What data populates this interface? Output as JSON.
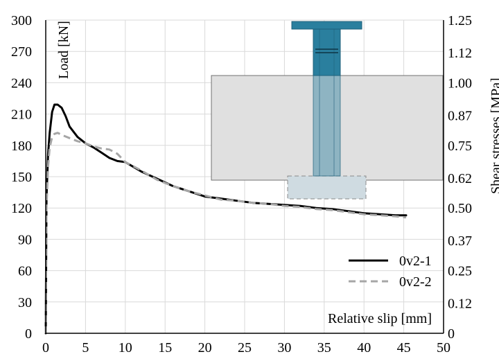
{
  "chart_data": {
    "type": "line",
    "title": "",
    "xlabel": "Relative slip [mm]",
    "ylabel": "Load [kN]",
    "y2label": "Shear stresses [MPa]",
    "xlim": [
      0,
      50
    ],
    "ylim": [
      0,
      300
    ],
    "y2lim": [
      0,
      1.25
    ],
    "x_ticks": [
      "0",
      "5",
      "10",
      "15",
      "20",
      "25",
      "30",
      "35",
      "40",
      "45",
      "50"
    ],
    "y_ticks": [
      "0",
      "30",
      "60",
      "90",
      "120",
      "150",
      "180",
      "210",
      "240",
      "270",
      "300"
    ],
    "y2_ticks": [
      "0",
      "0.12",
      "0.25",
      "0.37",
      "0.50",
      "0.62",
      "0.75",
      "0.87",
      "1.00",
      "1.12",
      "1.25"
    ],
    "grid": true,
    "legend_position": "bottom-right",
    "series": [
      {
        "name": "0v2-1",
        "style": "solid",
        "color": "#000000",
        "x": [
          0,
          0.1,
          0.3,
          0.5,
          0.8,
          1.1,
          1.5,
          2.0,
          2.5,
          3.0,
          4.0,
          5.0,
          6.0,
          7.0,
          8.0,
          9.0,
          10.0,
          12.0,
          14.0,
          16.0,
          18.0,
          20.0,
          22.0,
          24.0,
          26.0,
          28.0,
          30.0,
          32.0,
          34.0,
          36.0,
          38.0,
          40.0,
          42.0,
          44.0,
          45.3
        ],
        "y": [
          0,
          130,
          172,
          192,
          212,
          219,
          219,
          216,
          208,
          198,
          188,
          182,
          178,
          173,
          168,
          165,
          164,
          155,
          148,
          141,
          136,
          131,
          129,
          127,
          125,
          124,
          123,
          122,
          120,
          119,
          117,
          115,
          114,
          113,
          113
        ]
      },
      {
        "name": "0v2-2",
        "style": "dashed",
        "color": "#a6a6a6",
        "x": [
          0,
          0.1,
          0.3,
          0.5,
          0.8,
          1.1,
          1.5,
          2.0,
          3.0,
          4.0,
          5.0,
          6.0,
          7.0,
          8.0,
          9.0,
          10.0,
          12.0,
          14.0,
          16.0,
          18.0,
          20.0,
          22.0,
          24.0,
          26.0,
          28.0,
          30.0,
          32.0,
          34.0,
          36.0,
          38.0,
          40.0,
          42.0,
          44.0,
          45.3
        ],
        "y": [
          0,
          120,
          160,
          178,
          188,
          191,
          192,
          190,
          187,
          184,
          182,
          179,
          177,
          176,
          172,
          164,
          156,
          147,
          141,
          136,
          132,
          128,
          127,
          125,
          124,
          122,
          121,
          119,
          118,
          116,
          114,
          113,
          112,
          111
        ]
      }
    ]
  },
  "inset": {
    "description": "steel-column-in-concrete-block",
    "colors": {
      "steel": "#2a7f9e",
      "steel_dark": "#1f5f79",
      "concrete": "#e0e0e0",
      "base": "#cfdbe1"
    }
  }
}
